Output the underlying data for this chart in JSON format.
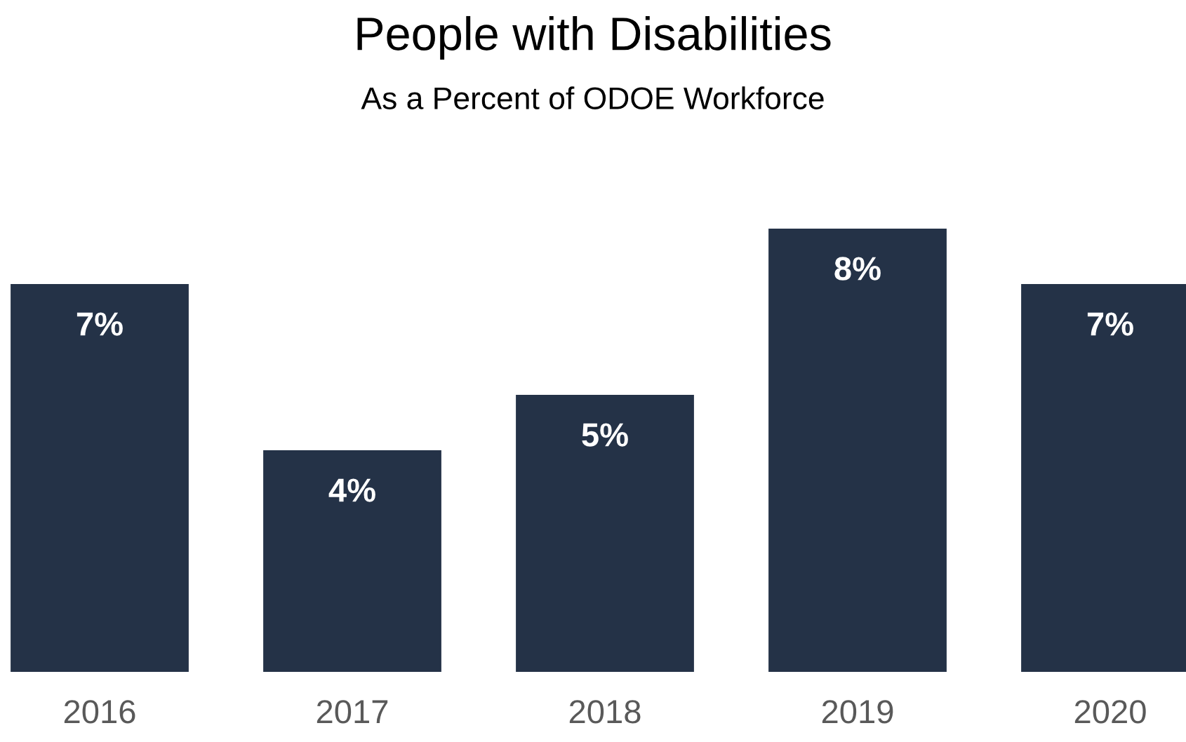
{
  "chart_data": {
    "type": "bar",
    "title": "People with Disabilities",
    "subtitle": "As a Percent of ODOE Workforce",
    "categories": [
      "2016",
      "2017",
      "2018",
      "2019",
      "2020"
    ],
    "values": [
      7,
      4,
      5,
      8,
      7
    ],
    "value_labels": [
      "7%",
      "4%",
      "5%",
      "8%",
      "7%"
    ],
    "color": "#243247",
    "grid": false,
    "legend": false
  }
}
